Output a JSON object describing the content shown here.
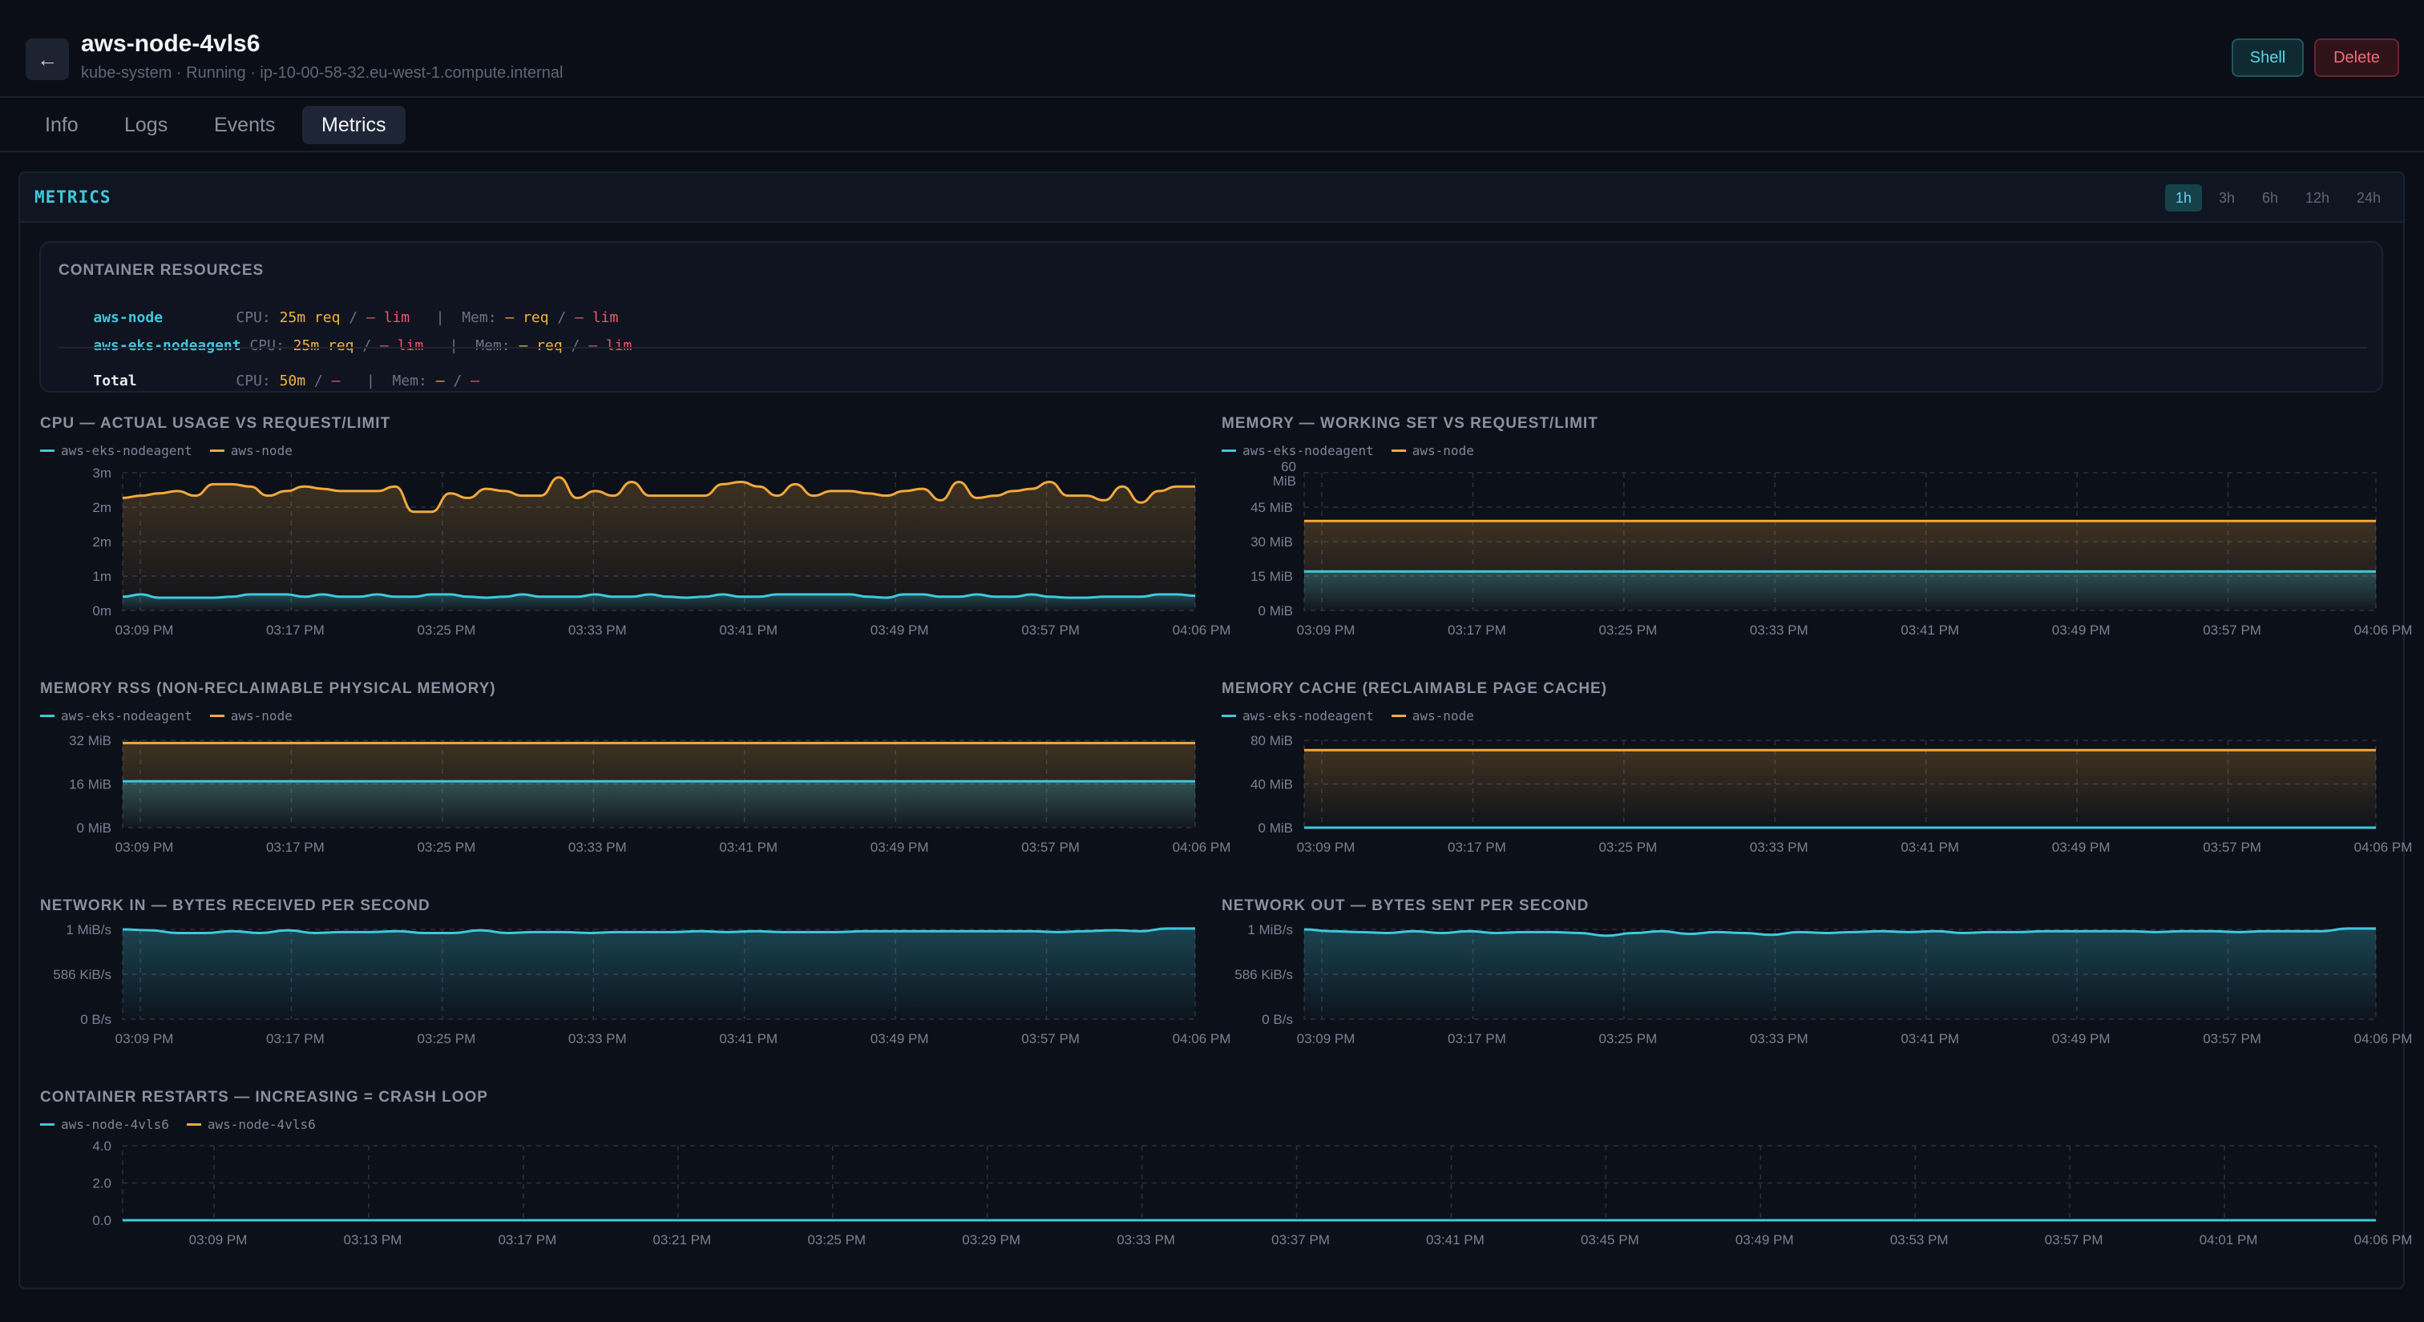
{
  "header": {
    "title": "aws-node-4vls6",
    "subtitle": "kube-system · Running · ip-10-00-58-32.eu-west-1.compute.internal",
    "shell_label": "Shell",
    "delete_label": "Delete"
  },
  "tabs": [
    {
      "label": "Info"
    },
    {
      "label": "Logs"
    },
    {
      "label": "Events"
    },
    {
      "label": "Metrics",
      "active": true
    }
  ],
  "metrics": {
    "title": "METRICS",
    "ranges": [
      {
        "label": "1h",
        "active": true
      },
      {
        "label": "3h"
      },
      {
        "label": "6h"
      },
      {
        "label": "12h"
      },
      {
        "label": "24h"
      }
    ]
  },
  "resources": {
    "title": "CONTAINER RESOURCES",
    "rows": [
      {
        "name": "aws-node",
        "cpu_label": "CPU:",
        "cpu_req": "25m req",
        "cpu_lim": "— lim",
        "mem_label": "Mem:",
        "mem_req": "— req",
        "mem_lim": "— lim"
      },
      {
        "name": "aws-eks-nodeagent",
        "cpu_label": "CPU:",
        "cpu_req": "25m req",
        "cpu_lim": "— lim",
        "mem_label": "Mem:",
        "mem_req": "— req",
        "mem_lim": "— lim"
      }
    ],
    "total": {
      "name": "Total",
      "cpu_label": "CPU:",
      "cpu_req": "50m",
      "cpu_lim": "—",
      "mem_label": "Mem:",
      "mem_req": "—",
      "mem_lim": "—"
    },
    "separator": "/",
    "pipe": "|"
  },
  "colors": {
    "cyan": "#3fc8dc",
    "amber": "#f2a93b",
    "grid": "#2a3142",
    "panel_bg": "#0c1019"
  },
  "chart_data": [
    {
      "type": "area",
      "title": "CPU — ACTUAL USAGE VS REQUEST/LIMIT",
      "legend": [
        "aws-eks-nodeagent",
        "aws-node"
      ],
      "y_ticks": [
        "0m",
        "1m",
        "2m",
        "2m",
        "3m"
      ],
      "ylim": [
        0,
        3
      ],
      "x_ticks": [
        "03:09 PM",
        "03:17 PM",
        "03:25 PM",
        "03:33 PM",
        "03:41 PM",
        "03:49 PM",
        "03:57 PM",
        "04:06 PM"
      ],
      "series": [
        {
          "name": "aws-eks-nodeagent",
          "color": "cyan",
          "values": [
            0.3,
            0.35,
            0.28,
            0.28,
            0.28,
            0.28,
            0.3,
            0.35,
            0.35,
            0.35,
            0.3,
            0.35,
            0.3,
            0.3,
            0.35,
            0.3,
            0.3,
            0.35,
            0.35,
            0.3,
            0.28,
            0.3,
            0.35,
            0.3,
            0.3,
            0.3,
            0.35,
            0.3,
            0.3,
            0.35,
            0.3,
            0.28,
            0.3,
            0.35,
            0.3,
            0.3,
            0.35,
            0.35,
            0.35,
            0.35,
            0.35,
            0.3,
            0.28,
            0.35,
            0.35,
            0.3,
            0.3,
            0.35,
            0.3,
            0.3,
            0.35,
            0.3,
            0.28,
            0.28,
            0.3,
            0.3,
            0.3,
            0.35,
            0.35,
            0.32
          ]
        },
        {
          "name": "aws-node",
          "color": "amber",
          "values": [
            2.45,
            2.5,
            2.55,
            2.6,
            2.5,
            2.75,
            2.75,
            2.7,
            2.5,
            2.6,
            2.7,
            2.65,
            2.6,
            2.6,
            2.6,
            2.7,
            2.15,
            2.15,
            2.55,
            2.45,
            2.65,
            2.6,
            2.5,
            2.5,
            2.9,
            2.45,
            2.6,
            2.5,
            2.8,
            2.5,
            2.5,
            2.5,
            2.5,
            2.75,
            2.8,
            2.7,
            2.5,
            2.75,
            2.5,
            2.6,
            2.6,
            2.55,
            2.5,
            2.6,
            2.65,
            2.4,
            2.8,
            2.45,
            2.5,
            2.6,
            2.65,
            2.8,
            2.5,
            2.5,
            2.4,
            2.7,
            2.35,
            2.6,
            2.7,
            2.7
          ]
        }
      ]
    },
    {
      "type": "area",
      "title": "MEMORY — WORKING SET VS REQUEST/LIMIT",
      "legend": [
        "aws-eks-nodeagent",
        "aws-node"
      ],
      "y_ticks": [
        "0 MiB",
        "15 MiB",
        "30 MiB",
        "45 MiB",
        "60 MiB"
      ],
      "ylim": [
        0,
        60
      ],
      "x_ticks": [
        "03:09 PM",
        "03:17 PM",
        "03:25 PM",
        "03:33 PM",
        "03:41 PM",
        "03:49 PM",
        "03:57 PM",
        "04:06 PM"
      ],
      "series": [
        {
          "name": "aws-eks-nodeagent",
          "color": "cyan",
          "values": [
            17,
            17,
            17,
            17,
            17,
            17,
            17,
            17,
            17,
            17,
            17,
            17
          ]
        },
        {
          "name": "aws-node",
          "color": "amber",
          "values": [
            39,
            39,
            39,
            39,
            39,
            39,
            39,
            39,
            39,
            39,
            39,
            39
          ]
        }
      ]
    },
    {
      "type": "area",
      "title": "MEMORY RSS (NON-RECLAIMABLE PHYSICAL MEMORY)",
      "legend": [
        "aws-eks-nodeagent",
        "aws-node"
      ],
      "y_ticks": [
        "0 MiB",
        "16 MiB",
        "32 MiB"
      ],
      "ylim": [
        0,
        32
      ],
      "x_ticks": [
        "03:09 PM",
        "03:17 PM",
        "03:25 PM",
        "03:33 PM",
        "03:41 PM",
        "03:49 PM",
        "03:57 PM",
        "04:06 PM"
      ],
      "series": [
        {
          "name": "aws-eks-nodeagent",
          "color": "cyan",
          "values": [
            17,
            17,
            17,
            17,
            17,
            17,
            17,
            17,
            17,
            17
          ]
        },
        {
          "name": "aws-node",
          "color": "amber",
          "values": [
            31,
            31,
            31,
            31,
            31,
            31,
            31,
            31,
            31,
            31
          ]
        }
      ]
    },
    {
      "type": "area",
      "title": "MEMORY CACHE (RECLAIMABLE PAGE CACHE)",
      "legend": [
        "aws-eks-nodeagent",
        "aws-node"
      ],
      "y_ticks": [
        "0 MiB",
        "40 MiB",
        "80 MiB"
      ],
      "ylim": [
        0,
        80
      ],
      "x_ticks": [
        "03:09 PM",
        "03:17 PM",
        "03:25 PM",
        "03:33 PM",
        "03:41 PM",
        "03:49 PM",
        "03:57 PM",
        "04:06 PM"
      ],
      "series": [
        {
          "name": "aws-eks-nodeagent",
          "color": "cyan",
          "values": [
            0,
            0,
            0,
            0,
            0,
            0,
            0,
            0,
            0,
            0
          ]
        },
        {
          "name": "aws-node",
          "color": "amber",
          "values": [
            71,
            71,
            71,
            71,
            71,
            71,
            71,
            71,
            71,
            71
          ]
        }
      ]
    },
    {
      "type": "area",
      "title": "NETWORK IN — BYTES RECEIVED PER SECOND",
      "legend": [],
      "y_ticks": [
        "0 B/s",
        "586 KiB/s",
        "1 MiB/s"
      ],
      "ylim": [
        0,
        1
      ],
      "x_ticks": [
        "03:09 PM",
        "03:17 PM",
        "03:25 PM",
        "03:33 PM",
        "03:41 PM",
        "03:49 PM",
        "03:57 PM",
        "04:06 PM"
      ],
      "series": [
        {
          "name": "",
          "color": "cyan",
          "values": [
            1.0,
            0.99,
            0.96,
            0.96,
            0.98,
            0.96,
            0.99,
            0.96,
            0.97,
            0.97,
            0.98,
            0.96,
            0.96,
            0.99,
            0.96,
            0.97,
            0.97,
            0.96,
            0.97,
            0.97,
            0.97,
            0.98,
            0.97,
            0.98,
            0.97,
            0.97,
            0.97,
            0.98,
            0.98,
            0.98,
            0.98,
            0.98,
            0.98,
            0.98,
            0.97,
            0.98,
            0.99,
            0.98,
            1.01,
            1.01
          ]
        }
      ]
    },
    {
      "type": "area",
      "title": "NETWORK OUT — BYTES SENT PER SECOND",
      "legend": [],
      "y_ticks": [
        "0 B/s",
        "586 KiB/s",
        "1 MiB/s"
      ],
      "ylim": [
        0,
        1
      ],
      "x_ticks": [
        "03:09 PM",
        "03:17 PM",
        "03:25 PM",
        "03:33 PM",
        "03:41 PM",
        "03:49 PM",
        "03:57 PM",
        "04:06 PM"
      ],
      "series": [
        {
          "name": "",
          "color": "cyan",
          "values": [
            1.0,
            0.98,
            0.97,
            0.96,
            0.98,
            0.96,
            0.98,
            0.96,
            0.97,
            0.97,
            0.96,
            0.93,
            0.96,
            0.98,
            0.95,
            0.97,
            0.96,
            0.94,
            0.97,
            0.96,
            0.97,
            0.98,
            0.97,
            0.98,
            0.96,
            0.97,
            0.97,
            0.98,
            0.98,
            0.98,
            0.98,
            0.97,
            0.98,
            0.98,
            0.97,
            0.98,
            0.98,
            0.98,
            1.01,
            1.01
          ]
        }
      ]
    },
    {
      "type": "line",
      "title": "CONTAINER RESTARTS — INCREASING = CRASH LOOP",
      "legend": [
        "aws-node-4vls6",
        "aws-node-4vls6"
      ],
      "y_ticks": [
        "0.0",
        "2.0",
        "4.0"
      ],
      "ylim": [
        0,
        4
      ],
      "x_ticks": [
        "03:09 PM",
        "03:13 PM",
        "03:17 PM",
        "03:21 PM",
        "03:25 PM",
        "03:29 PM",
        "03:33 PM",
        "03:37 PM",
        "03:41 PM",
        "03:45 PM",
        "03:49 PM",
        "03:53 PM",
        "03:57 PM",
        "04:01 PM",
        "04:06 PM"
      ],
      "series": [
        {
          "name": "aws-node-4vls6",
          "color": "cyan",
          "values": [
            0,
            0,
            0,
            0,
            0,
            0,
            0,
            0,
            0,
            0
          ]
        },
        {
          "name": "aws-node-4vls6",
          "color": "amber",
          "values": [
            0,
            0,
            0,
            0,
            0,
            0,
            0,
            0,
            0,
            0
          ]
        }
      ]
    }
  ]
}
